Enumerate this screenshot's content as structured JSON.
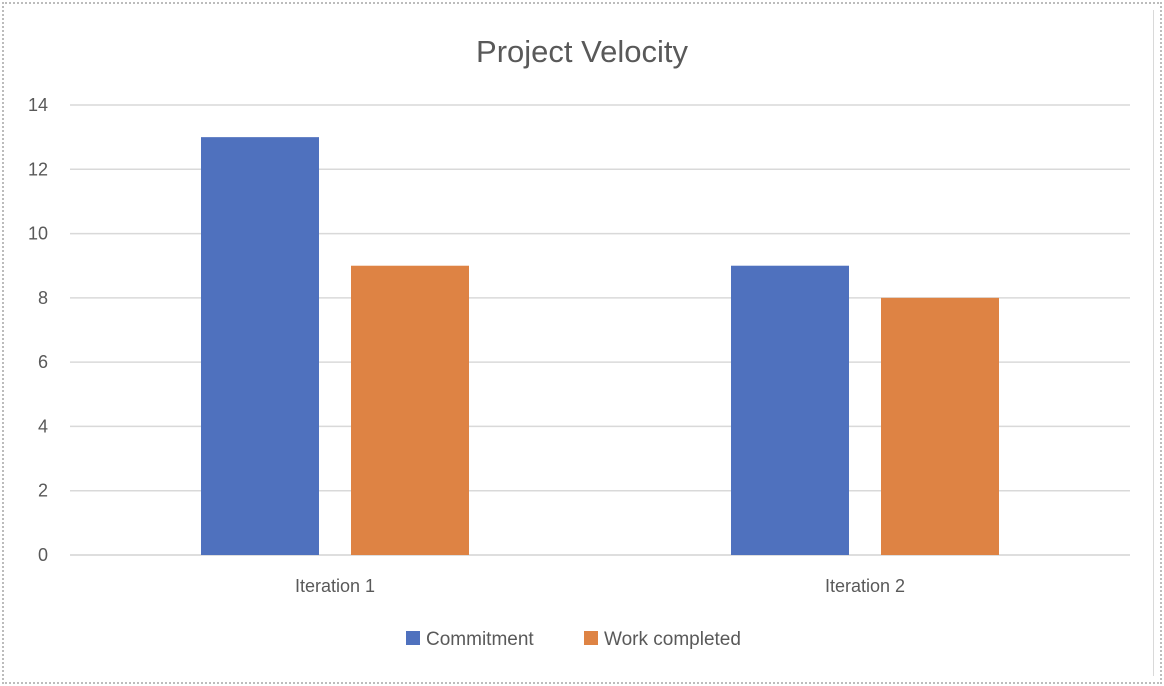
{
  "chart_data": {
    "type": "bar",
    "title": "Project Velocity",
    "categories": [
      "Iteration 1",
      "Iteration 2"
    ],
    "series": [
      {
        "name": "Commitment",
        "values": [
          13,
          9
        ],
        "color": "#4F71BE"
      },
      {
        "name": "Work completed",
        "values": [
          9,
          8
        ],
        "color": "#DE8344"
      }
    ],
    "ylim": [
      0,
      14
    ],
    "yticks": [
      0,
      2,
      4,
      6,
      8,
      10,
      12,
      14
    ],
    "grid": true,
    "legend": "bottom",
    "gridline_color": "#D9D9D9"
  }
}
